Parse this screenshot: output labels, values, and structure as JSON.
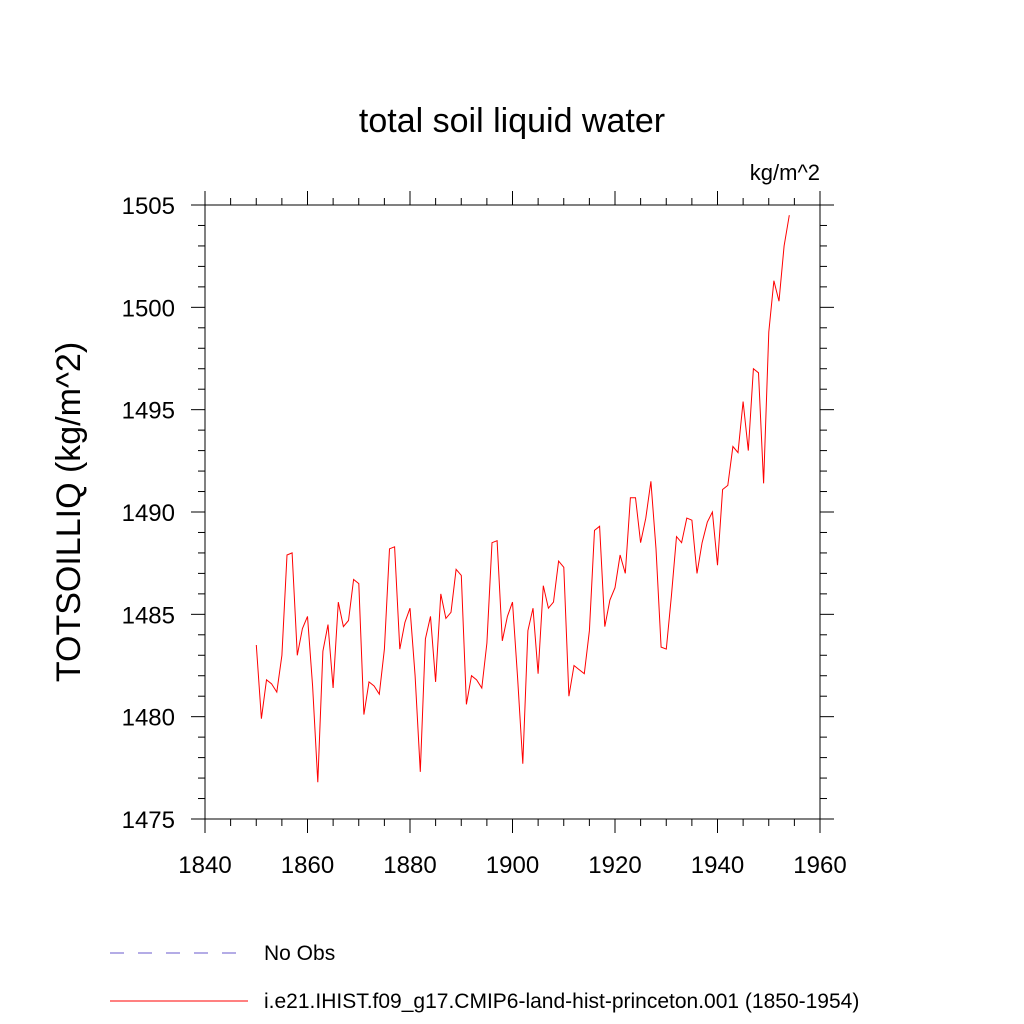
{
  "chart_data": {
    "type": "line",
    "title": "total soil liquid water",
    "units_label": "kg/m^2",
    "ylabel": "TOTSOILLIQ  (kg/m^2)",
    "xlabel": "",
    "xlim": [
      1840,
      1960
    ],
    "ylim": [
      1475,
      1505
    ],
    "x_ticks": [
      1840,
      1860,
      1880,
      1900,
      1920,
      1940,
      1960
    ],
    "y_ticks": [
      1475,
      1480,
      1485,
      1490,
      1495,
      1500,
      1505
    ],
    "x_ticks_label": [
      "1840",
      "1860",
      "1880",
      "1900",
      "1920",
      "1940",
      "1960"
    ],
    "y_ticks_label": [
      "1475",
      "1480",
      "1485",
      "1490",
      "1495",
      "1500",
      "1505"
    ],
    "grid": false,
    "legend_position": "bottom-left, below plot",
    "legend": [
      {
        "label": "No Obs",
        "style": "dashed",
        "color": "#6a5acd"
      },
      {
        "label": "i.e21.IHIST.f09_g17.CMIP6-land-hist-princeton.001 (1850-1954)",
        "style": "solid",
        "color": "#ff0000"
      }
    ],
    "series": [
      {
        "name": "i.e21.IHIST.f09_g17.CMIP6-land-hist-princeton.001 (1850-1954)",
        "color": "#ff0000",
        "x": [
          1850,
          1851,
          1852,
          1853,
          1854,
          1855,
          1856,
          1857,
          1858,
          1859,
          1860,
          1861,
          1862,
          1863,
          1864,
          1865,
          1866,
          1867,
          1868,
          1869,
          1870,
          1871,
          1872,
          1873,
          1874,
          1875,
          1876,
          1877,
          1878,
          1879,
          1880,
          1881,
          1882,
          1883,
          1884,
          1885,
          1886,
          1887,
          1888,
          1889,
          1890,
          1891,
          1892,
          1893,
          1894,
          1895,
          1896,
          1897,
          1898,
          1899,
          1900,
          1901,
          1902,
          1903,
          1904,
          1905,
          1906,
          1907,
          1908,
          1909,
          1910,
          1911,
          1912,
          1913,
          1914,
          1915,
          1916,
          1917,
          1918,
          1919,
          1920,
          1921,
          1922,
          1923,
          1924,
          1925,
          1926,
          1927,
          1928,
          1929,
          1930,
          1931,
          1932,
          1933,
          1934,
          1935,
          1936,
          1937,
          1938,
          1939,
          1940,
          1941,
          1942,
          1943,
          1944,
          1945,
          1946,
          1947,
          1948,
          1949,
          1950,
          1951,
          1952,
          1953,
          1954
        ],
        "values": [
          1483.5,
          1479.9,
          1481.8,
          1481.6,
          1481.2,
          1483.0,
          1487.9,
          1488.0,
          1483.0,
          1484.3,
          1484.9,
          1481.5,
          1476.8,
          1483.2,
          1484.5,
          1481.4,
          1485.6,
          1484.4,
          1484.7,
          1486.7,
          1486.5,
          1480.1,
          1481.7,
          1481.5,
          1481.1,
          1483.3,
          1488.2,
          1488.3,
          1483.3,
          1484.6,
          1485.3,
          1482.0,
          1477.3,
          1483.8,
          1484.9,
          1481.7,
          1486.0,
          1484.8,
          1485.1,
          1487.2,
          1486.9,
          1480.6,
          1482.0,
          1481.8,
          1481.4,
          1483.6,
          1488.5,
          1488.6,
          1483.7,
          1484.9,
          1485.6,
          1481.9,
          1477.7,
          1484.2,
          1485.3,
          1482.1,
          1486.4,
          1485.3,
          1485.6,
          1487.6,
          1487.3,
          1481.0,
          1482.5,
          1482.3,
          1482.1,
          1484.2,
          1489.1,
          1489.3,
          1484.4,
          1485.7,
          1486.3,
          1487.9,
          1487.0,
          1490.7,
          1490.7,
          1488.5,
          1489.7,
          1491.5,
          1488.2,
          1483.4,
          1483.3,
          1485.9,
          1488.8,
          1488.5,
          1489.7,
          1489.6,
          1487.0,
          1488.5,
          1489.5,
          1490.0,
          1487.4,
          1491.1,
          1491.3,
          1493.2,
          1492.9,
          1495.4,
          1493.0,
          1497.0,
          1496.8,
          1491.4,
          1498.8,
          1501.3,
          1500.3,
          1503.0,
          1504.5
        ]
      }
    ]
  }
}
